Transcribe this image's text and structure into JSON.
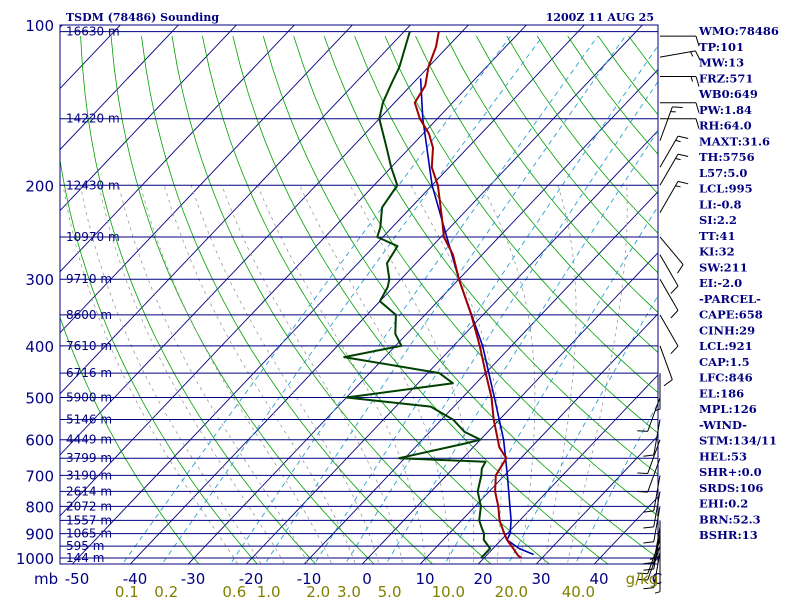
{
  "header": {
    "station": "TSDM (78486) Sounding",
    "time": "1200Z 11 AUG 25"
  },
  "colors": {
    "frame": "#000080",
    "temperature": "#a00000",
    "dewpoint": "#004000",
    "parcel": "#0000b4",
    "dry_adiabat": "#00a000",
    "moist_adiabat": "#999999",
    "mixing_ratio": "#2aa0d0",
    "wind_barb": "#000000"
  },
  "chart_data": {
    "type": "skew-t log-p",
    "y_axis_unit": "mb",
    "x_axis_unit": "C",
    "mixing_ratio_unit": "g/kg",
    "pressure_ticks": [
      "100",
      "200",
      "300",
      "400",
      "500",
      "600",
      "700",
      "800",
      "900",
      "1000"
    ],
    "temperature_ticks": [
      "-50",
      "-40",
      "-30",
      "-20",
      "-10",
      "0",
      "10",
      "20",
      "30",
      "40",
      "C"
    ],
    "mixing_ratio_ticks": [
      "0.1",
      "0.2",
      "0.6",
      "1.0",
      "2.0",
      "3.0",
      "5.0",
      "10.0",
      "20.0",
      "40.0"
    ],
    "height_levels": [
      {
        "p": 103,
        "label": "16630 m"
      },
      {
        "p": 150,
        "label": "14220 m"
      },
      {
        "p": 200,
        "label": "12430 m"
      },
      {
        "p": 250,
        "label": "10970 m"
      },
      {
        "p": 300,
        "label": "9710 m"
      },
      {
        "p": 350,
        "label": "8600 m"
      },
      {
        "p": 400,
        "label": "7610 m"
      },
      {
        "p": 450,
        "label": "6716 m"
      },
      {
        "p": 500,
        "label": "5900 m"
      },
      {
        "p": 550,
        "label": "5146 m"
      },
      {
        "p": 600,
        "label": "4449 m"
      },
      {
        "p": 650,
        "label": "3799 m"
      },
      {
        "p": 700,
        "label": "3190 m"
      },
      {
        "p": 750,
        "label": "2614 m"
      },
      {
        "p": 800,
        "label": "2072 m"
      },
      {
        "p": 850,
        "label": "1557 m"
      },
      {
        "p": 900,
        "label": "1065 m"
      },
      {
        "p": 950,
        "label": "595 m"
      },
      {
        "p": 1000,
        "label": "144 m"
      }
    ],
    "temperature_profile": [
      [
        1000,
        26.5
      ],
      [
        990,
        25.5
      ],
      [
        960,
        23.5
      ],
      [
        925,
        21.0
      ],
      [
        900,
        19.5
      ],
      [
        850,
        16.5
      ],
      [
        800,
        14.0
      ],
      [
        750,
        11.0
      ],
      [
        700,
        8.5
      ],
      [
        650,
        7.5
      ],
      [
        620,
        4.5
      ],
      [
        600,
        3.0
      ],
      [
        550,
        -1.0
      ],
      [
        500,
        -5.0
      ],
      [
        450,
        -10.0
      ],
      [
        400,
        -15.5
      ],
      [
        350,
        -22.0
      ],
      [
        300,
        -30.0
      ],
      [
        270,
        -35.0
      ],
      [
        250,
        -39.5
      ],
      [
        230,
        -43.0
      ],
      [
        200,
        -49.0
      ],
      [
        185,
        -53.0
      ],
      [
        170,
        -56.0
      ],
      [
        160,
        -59.0
      ],
      [
        150,
        -63.0
      ],
      [
        140,
        -66.5
      ],
      [
        130,
        -67.5
      ],
      [
        120,
        -70.0
      ],
      [
        110,
        -72.0
      ],
      [
        103,
        -74.0
      ]
    ],
    "dewpoint_profile": [
      [
        1000,
        19.5
      ],
      [
        960,
        19.5
      ],
      [
        925,
        17.0
      ],
      [
        900,
        16.0
      ],
      [
        875,
        14.5
      ],
      [
        850,
        13.0
      ],
      [
        800,
        11.0
      ],
      [
        750,
        8.0
      ],
      [
        700,
        6.0
      ],
      [
        680,
        5.0
      ],
      [
        660,
        4.5
      ],
      [
        650,
        -11.0
      ],
      [
        610,
        -2.0
      ],
      [
        600,
        0.0
      ],
      [
        580,
        -4.0
      ],
      [
        550,
        -8.0
      ],
      [
        520,
        -14.0
      ],
      [
        500,
        -30.0
      ],
      [
        470,
        -14.0
      ],
      [
        450,
        -18.0
      ],
      [
        420,
        -37.0
      ],
      [
        400,
        -29.0
      ],
      [
        380,
        -32.0
      ],
      [
        350,
        -35.0
      ],
      [
        330,
        -40.0
      ],
      [
        310,
        -41.0
      ],
      [
        300,
        -42.0
      ],
      [
        280,
        -45.0
      ],
      [
        260,
        -46.0
      ],
      [
        250,
        -51.0
      ],
      [
        240,
        -52.0
      ],
      [
        220,
        -55.0
      ],
      [
        200,
        -56.0
      ],
      [
        185,
        -60.0
      ],
      [
        170,
        -64.0
      ],
      [
        150,
        -70.0
      ],
      [
        140,
        -72.0
      ],
      [
        130,
        -73.5
      ],
      [
        120,
        -75.0
      ],
      [
        103,
        -79.0
      ]
    ],
    "parcel_profile": [
      [
        985,
        28.0
      ],
      [
        960,
        24.5
      ],
      [
        925,
        21.0
      ],
      [
        900,
        20.5
      ],
      [
        850,
        18.5
      ],
      [
        800,
        16.0
      ],
      [
        700,
        10.5
      ],
      [
        600,
        4.0
      ],
      [
        500,
        -4.5
      ],
      [
        400,
        -15.0
      ],
      [
        300,
        -30.0
      ],
      [
        250,
        -39.0
      ],
      [
        200,
        -50.0
      ],
      [
        150,
        -62.5
      ],
      [
        126,
        -69.5
      ]
    ],
    "wind_levels": [
      {
        "p": 990,
        "dir": 180,
        "spd": 5
      },
      {
        "p": 975,
        "dir": 190,
        "spd": 10
      },
      {
        "p": 950,
        "dir": 200,
        "spd": 10
      },
      {
        "p": 925,
        "dir": 200,
        "spd": 10
      },
      {
        "p": 900,
        "dir": 190,
        "spd": 10
      },
      {
        "p": 875,
        "dir": 190,
        "spd": 10
      },
      {
        "p": 850,
        "dir": 180,
        "spd": 10
      },
      {
        "p": 800,
        "dir": 190,
        "spd": 10
      },
      {
        "p": 750,
        "dir": 190,
        "spd": 10
      },
      {
        "p": 700,
        "dir": 190,
        "spd": 10
      },
      {
        "p": 650,
        "dir": 200,
        "spd": 10
      },
      {
        "p": 600,
        "dir": 200,
        "spd": 10
      },
      {
        "p": 550,
        "dir": 190,
        "spd": 10
      },
      {
        "p": 500,
        "dir": 200,
        "spd": 10
      },
      {
        "p": 450,
        "dir": 180,
        "spd": 5
      },
      {
        "p": 400,
        "dir": 160,
        "spd": 10
      },
      {
        "p": 350,
        "dir": 150,
        "spd": 10
      },
      {
        "p": 300,
        "dir": 150,
        "spd": 10
      },
      {
        "p": 270,
        "dir": 150,
        "spd": 10
      },
      {
        "p": 250,
        "dir": 140,
        "spd": 10
      },
      {
        "p": 225,
        "dir": 30,
        "spd": 15
      },
      {
        "p": 200,
        "dir": 30,
        "spd": 15
      },
      {
        "p": 185,
        "dir": 30,
        "spd": 15
      },
      {
        "p": 165,
        "dir": 20,
        "spd": 15
      },
      {
        "p": 150,
        "dir": 90,
        "spd": 10
      },
      {
        "p": 140,
        "dir": 90,
        "spd": 10
      },
      {
        "p": 125,
        "dir": 90,
        "spd": 15
      },
      {
        "p": 115,
        "dir": 80,
        "spd": 15
      },
      {
        "p": 105,
        "dir": 90,
        "spd": 10
      }
    ]
  },
  "indices": [
    "WMO:78486",
    "TP:101",
    "MW:13",
    "FRZ:571",
    "WB0:649",
    "PW:1.84",
    "RH:64.0",
    "MAXT:31.6",
    "TH:5756",
    "L57:5.0",
    "LCL:995",
    "LI:-0.8",
    "SI:2.2",
    "TT:41",
    "KI:32",
    "SW:211",
    "EI:-2.0",
    "-PARCEL-",
    "CAPE:658",
    "CINH:29",
    "LCL:921",
    "CAP:1.5",
    "LFC:846",
    "EL:186",
    "MPL:126",
    "-WIND-",
    "STM:134/11",
    "HEL:53",
    "SHR+:0.0",
    "SRDS:106",
    "EHI:0.2",
    "BRN:52.3",
    "BSHR:13"
  ]
}
